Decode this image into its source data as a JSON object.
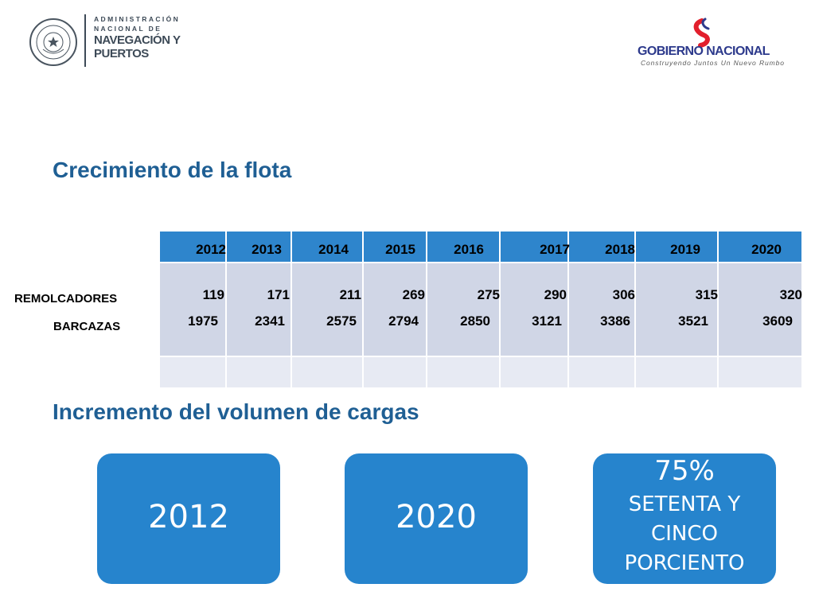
{
  "header": {
    "anp_line1": "ADMINISTRACIÓN",
    "anp_line2": "NACIONAL DE",
    "anp_line3": "NAVEGACIÓN Y",
    "anp_line4": "PUERTOS",
    "gob_word1": "GOBIERNO",
    "gob_word2": "NACIONAL",
    "gob_tagline": "Construyendo Juntos Un Nuevo Rumbo"
  },
  "section1": {
    "title": "Crecimiento de la flota"
  },
  "table": {
    "years": [
      "2012",
      "2013",
      "2014",
      "2015",
      "2016",
      "2017",
      "2018",
      "2019",
      "2020"
    ],
    "rows": [
      {
        "label": "REMOLCADORES",
        "values": [
          "119",
          "171",
          "211",
          "269",
          "275",
          "290",
          "306",
          "315",
          "320"
        ]
      },
      {
        "label": "BARCAZAS",
        "values": [
          "1975",
          "2341",
          "2575",
          "2794",
          "2850",
          "3121",
          "3386",
          "3521",
          "3609"
        ]
      }
    ]
  },
  "section2": {
    "title": "Incremento del volumen de cargas"
  },
  "boxes": [
    {
      "text": "2012"
    },
    {
      "text": "2020"
    },
    {
      "percent": "75%",
      "line1": "SETENTA Y",
      "line2": "CINCO",
      "line3": "PORCIENTO"
    }
  ],
  "colors": {
    "heading": "#1f5f94",
    "table_header": "#2e85cc",
    "table_body": "#d0d6e6",
    "box": "#2684cd"
  }
}
